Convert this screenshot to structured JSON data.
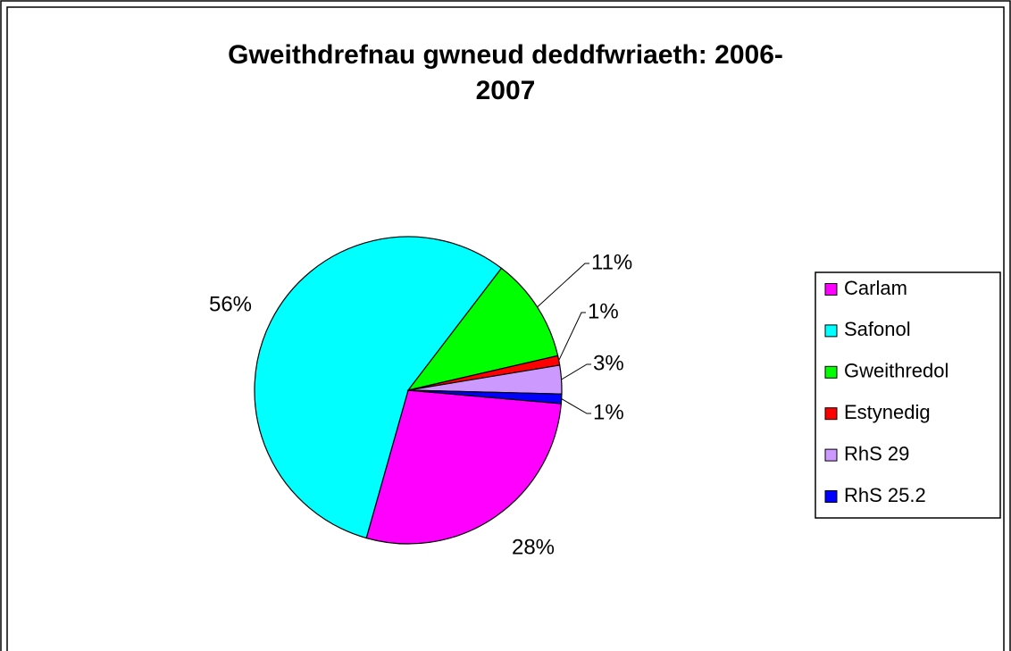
{
  "chart_data": {
    "type": "pie",
    "title": "Gweithdrefnau gwneud deddfwriaeth: 2006-2007",
    "categories": [
      "Carlam",
      "Safonol",
      "Gweithredol",
      "Estynedig",
      "RhS 29",
      "RhS 25.2"
    ],
    "values": [
      28,
      56,
      11,
      1,
      3,
      1
    ],
    "value_labels": [
      "28%",
      "56%",
      "11%",
      "1%",
      "3%",
      "1%"
    ],
    "colors": [
      "#ff00ff",
      "#00ffff",
      "#00ff00",
      "#ff0000",
      "#cc99ff",
      "#0000ff"
    ],
    "legend": "right"
  }
}
